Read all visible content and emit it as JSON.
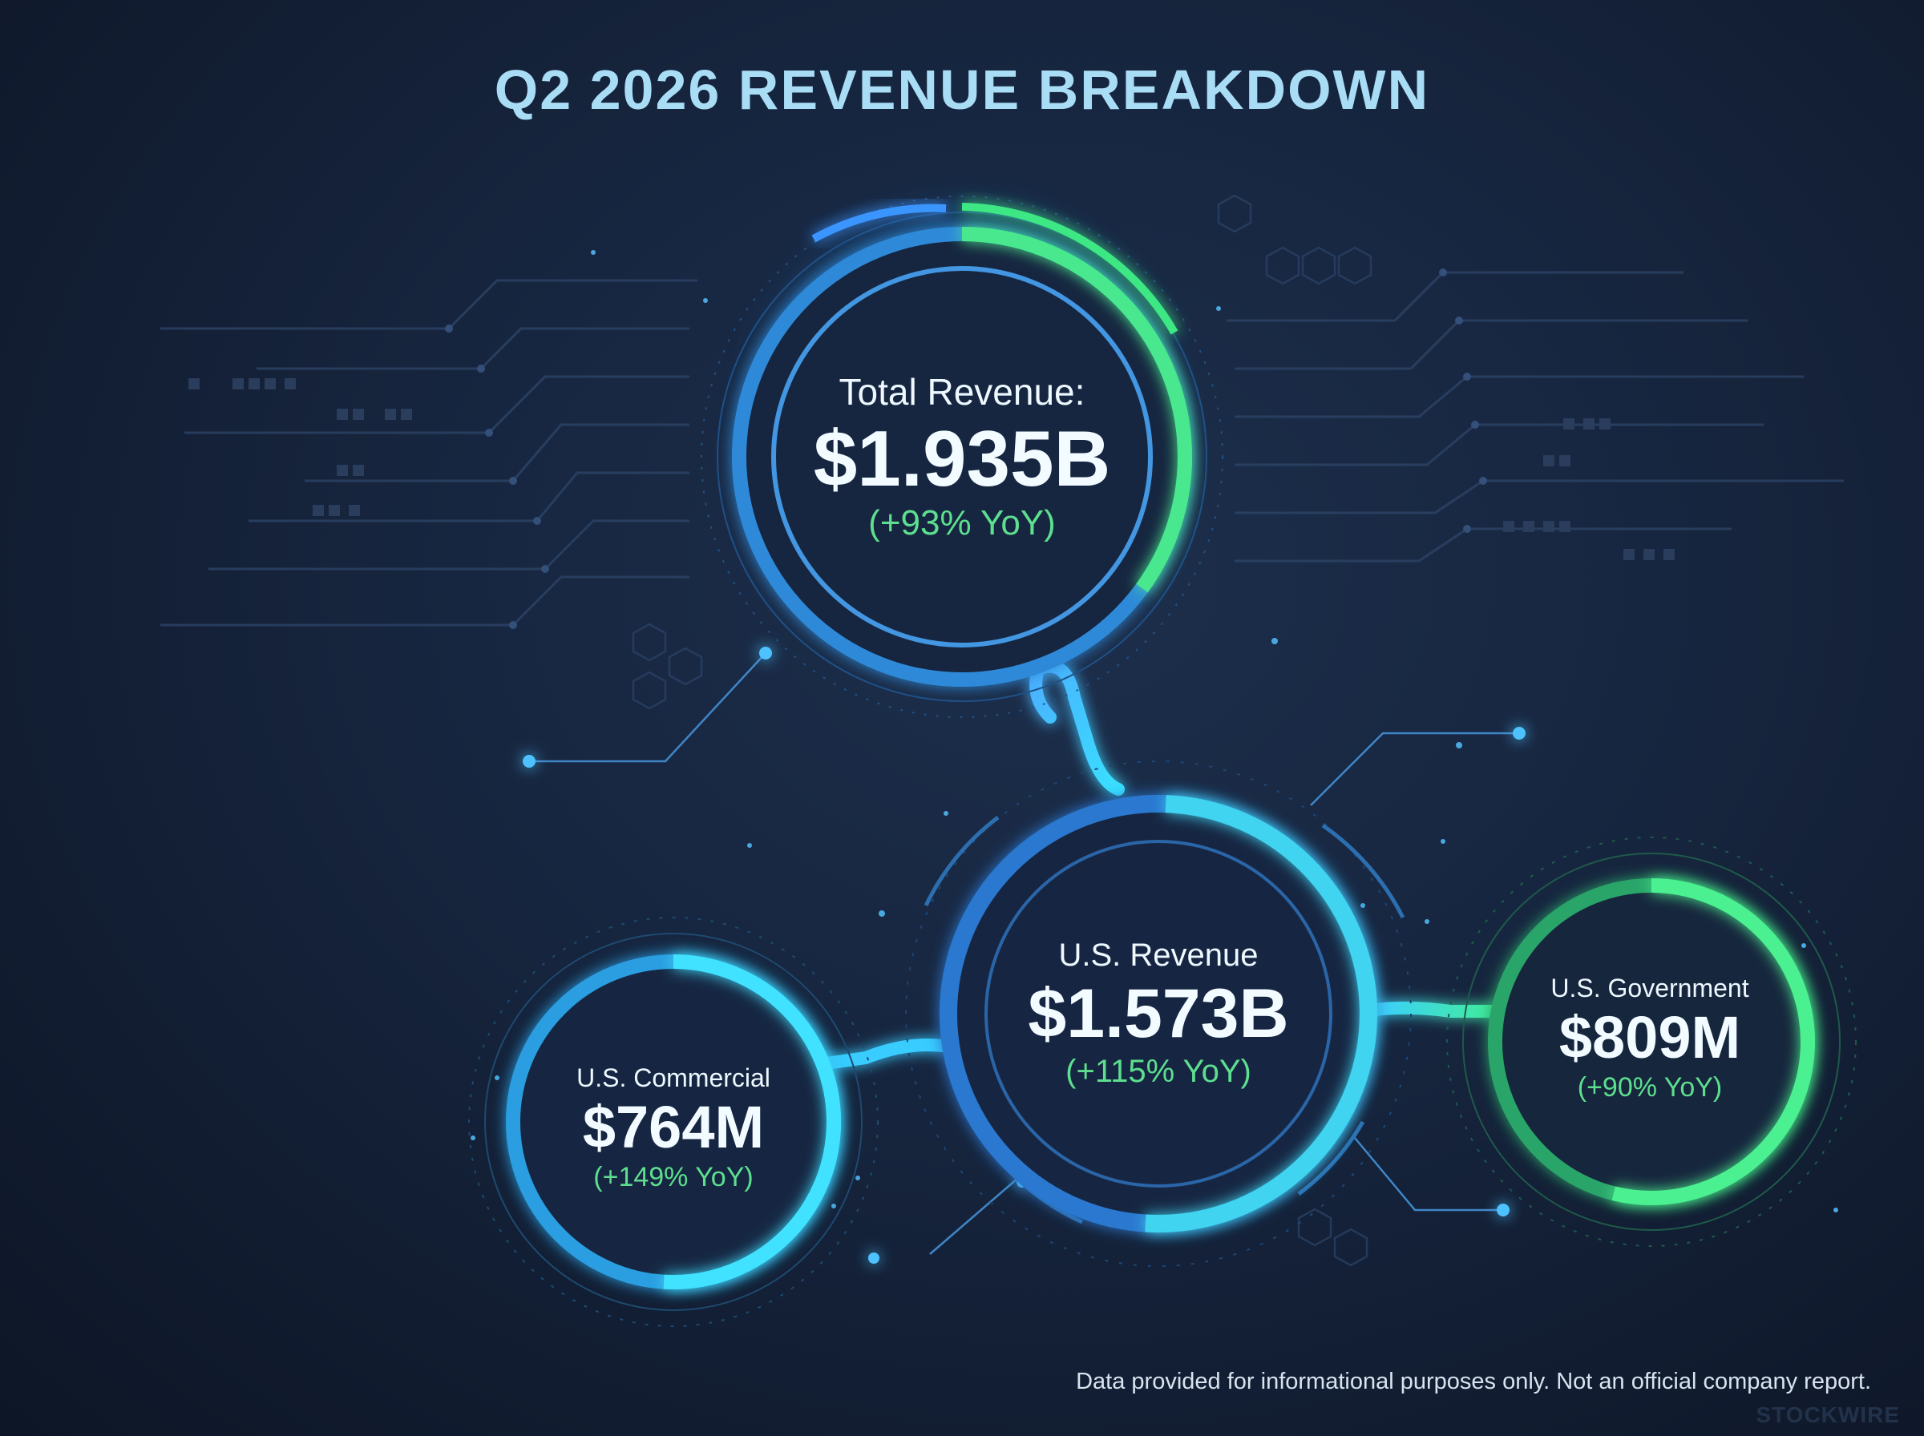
{
  "title": "Q2 2026 REVENUE BREAKDOWN",
  "disclaimer": "Data provided for informational purposes only. Not an official company report.",
  "watermark": "STOCKWIRE",
  "colors": {
    "background": "#142238",
    "blue_ring": "#3aa8ff",
    "cyan_ring": "#35d6ff",
    "green_ring": "#3ff08a",
    "yoy_text": "#5ddf8f",
    "title_text": "#a9dcf5"
  },
  "chart_data": {
    "type": "hierarchy",
    "title": "Q2 2026 REVENUE BREAKDOWN",
    "nodes": [
      {
        "id": "total",
        "label": "Total Revenue:",
        "value": "$1.935B",
        "value_usd_millions": 1935,
        "yoy": "(+93% YoY)",
        "yoy_pct": 93,
        "parent": null
      },
      {
        "id": "us",
        "label": "U.S. Revenue",
        "value": "$1.573B",
        "value_usd_millions": 1573,
        "yoy": "(+115% YoY)",
        "yoy_pct": 115,
        "parent": "total"
      },
      {
        "id": "commercial",
        "label": "U.S. Commercial",
        "value": "$764M",
        "value_usd_millions": 764,
        "yoy": "(+149% YoY)",
        "yoy_pct": 149,
        "parent": "us"
      },
      {
        "id": "government",
        "label": "U.S. Government",
        "value": "$809M",
        "value_usd_millions": 809,
        "yoy": "(+90% YoY)",
        "yoy_pct": 90,
        "parent": "us"
      }
    ]
  }
}
